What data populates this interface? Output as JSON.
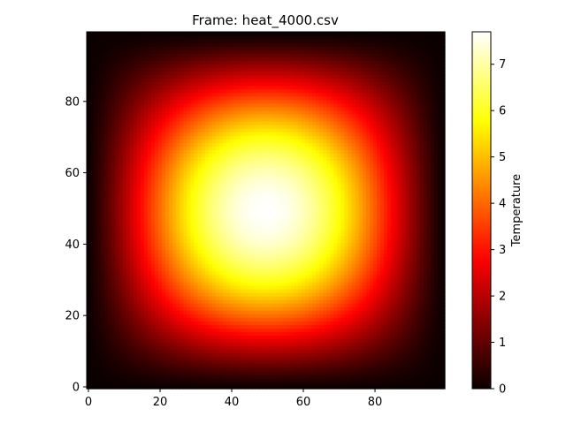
{
  "chart_data": {
    "type": "heatmap",
    "title": "Frame: heat_4000.csv",
    "xlabel": "",
    "ylabel": "",
    "grid": false,
    "colormap": "hot",
    "grid_size": [
      100,
      100
    ],
    "xlim": [
      0,
      99
    ],
    "ylim": [
      0,
      99
    ],
    "x_ticks": [
      0,
      20,
      40,
      60,
      80
    ],
    "y_ticks": [
      0,
      20,
      40,
      60,
      80
    ],
    "field": {
      "shape": "centered bump, zero at edges",
      "center": [
        49.5,
        49.5
      ],
      "peak_value": 7.7
    },
    "colorbar": {
      "label": "Temperature",
      "min": 0,
      "max": 7.7,
      "ticks": [
        0,
        1,
        2,
        3,
        4,
        5,
        6,
        7
      ]
    }
  }
}
